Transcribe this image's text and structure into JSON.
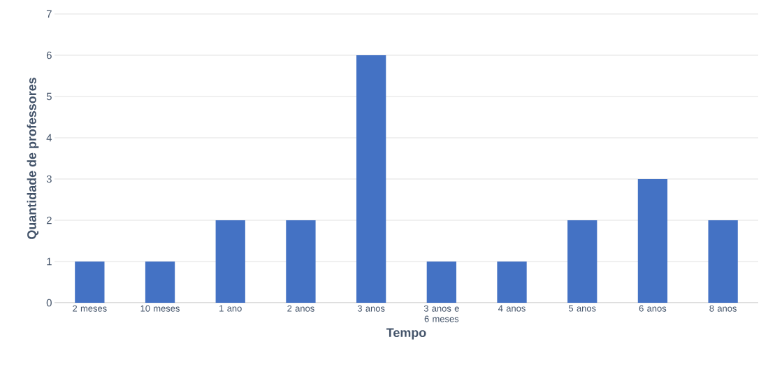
{
  "chart_data": {
    "type": "bar",
    "xlabel": "Tempo",
    "ylabel": "Quantidade de professores",
    "categories": [
      "2 meses",
      "10 meses",
      "1 ano",
      "2 anos",
      "3 anos",
      "3 anos e 6 meses",
      "4 anos",
      "5 anos",
      "6 anos",
      "8 anos"
    ],
    "values": [
      1,
      1,
      2,
      2,
      6,
      1,
      1,
      2,
      3,
      2
    ],
    "color": "#4472c4",
    "ylim": [
      0,
      7
    ],
    "yticks": [
      0,
      1,
      2,
      3,
      4,
      5,
      6,
      7
    ],
    "grid": "y"
  }
}
